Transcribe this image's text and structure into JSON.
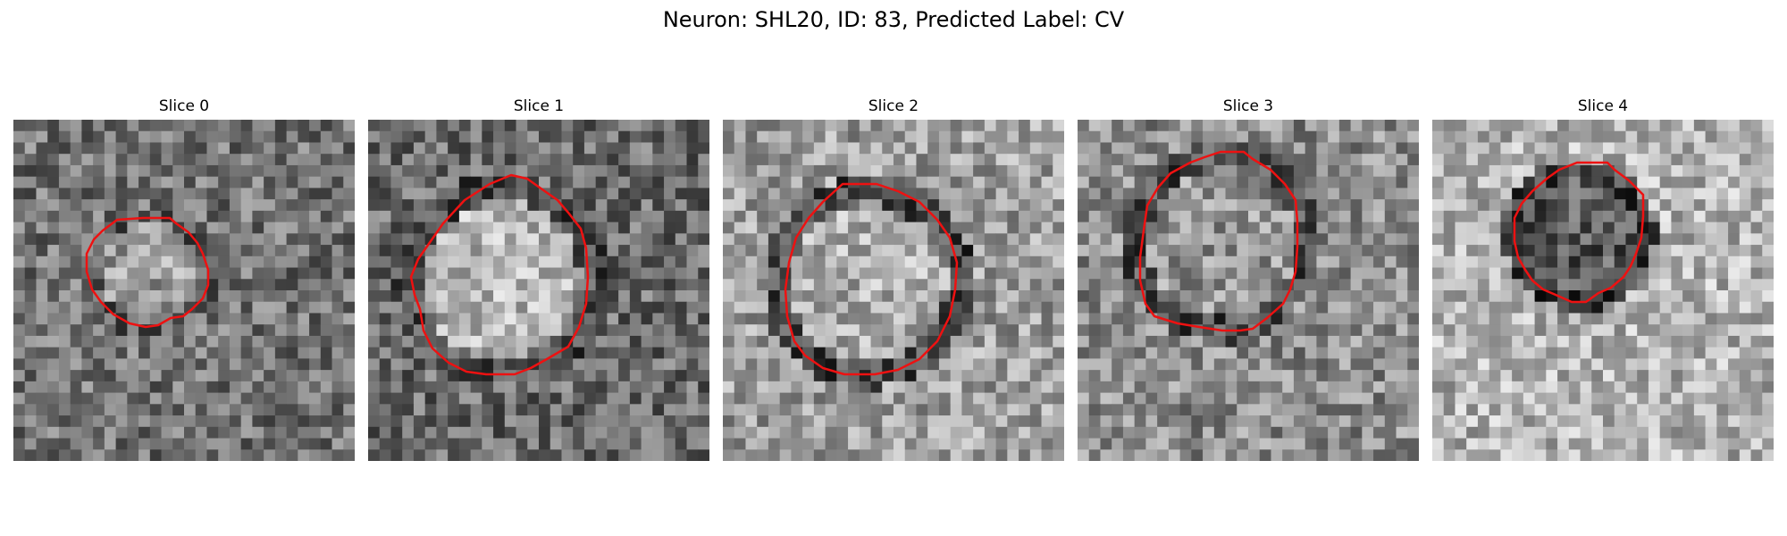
{
  "figure": {
    "title": "Neuron: SHL20, ID: 83, Predicted Label: CV"
  },
  "panels": [
    {
      "title": "Slice 0",
      "contour_color": "#ee1111",
      "seed": 11,
      "ring": 0.35,
      "inner": 0.62,
      "outer": 0.45
    },
    {
      "title": "Slice 1",
      "contour_color": "#ee1111",
      "seed": 23,
      "ring": 0.3,
      "inner": 0.72,
      "outer": 0.42
    },
    {
      "title": "Slice 2",
      "contour_color": "#ee1111",
      "seed": 37,
      "ring": 0.28,
      "inner": 0.68,
      "outer": 0.62
    },
    {
      "title": "Slice 3",
      "contour_color": "#ee1111",
      "seed": 41,
      "ring": 0.3,
      "inner": 0.58,
      "outer": 0.55
    },
    {
      "title": "Slice 4",
      "contour_color": "#ee1111",
      "seed": 53,
      "ring": 0.25,
      "inner": 0.35,
      "outer": 0.7
    }
  ]
}
